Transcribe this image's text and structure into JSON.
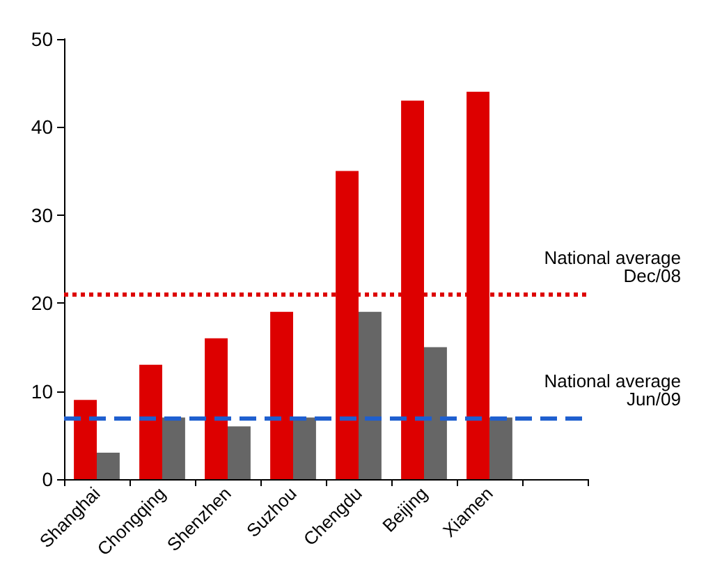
{
  "chart_data": {
    "type": "bar",
    "categories": [
      "Shanghai",
      "Chongqing",
      "Shenzhen",
      "Suzhou",
      "Chengdu",
      "Beijing",
      "Xiamen",
      null
    ],
    "series": [
      {
        "color": "#dd0000",
        "values": [
          9,
          13,
          16,
          19,
          35,
          43,
          44,
          null
        ]
      },
      {
        "color": "#666666",
        "values": [
          3,
          7,
          6,
          7,
          19,
          15,
          7,
          null
        ]
      }
    ],
    "ylim": [
      0,
      50
    ],
    "yticks": [
      0,
      10,
      20,
      30,
      40,
      50
    ],
    "grid": false,
    "ref_lines": [
      {
        "axis": "y",
        "value": 21,
        "label": "National average\nDec/08",
        "color": "#dd0000",
        "line_style": "dotted"
      },
      {
        "axis": "y",
        "value": 7,
        "label": "National average\nJun/09",
        "color": "#1f5fcf",
        "line_style": "dashed"
      }
    ]
  }
}
